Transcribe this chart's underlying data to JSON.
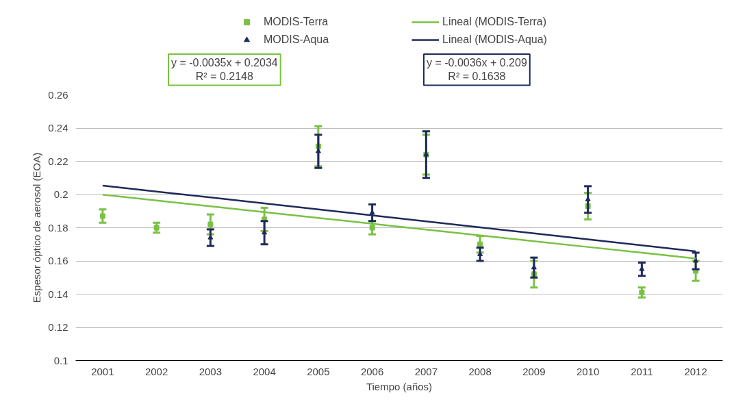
{
  "chart_data": {
    "type": "scatter",
    "xlabel": "Tiempo (años)",
    "ylabel": "Espesor óptico de aerosol (EOA)",
    "categories": [
      "2001",
      "2002",
      "2003",
      "2004",
      "2005",
      "2006",
      "2007",
      "2008",
      "2009",
      "2010",
      "2011",
      "2012"
    ],
    "ylim": [
      0.1,
      0.26
    ],
    "yticks": [
      0.1,
      0.12,
      0.14,
      0.16,
      0.18,
      0.2,
      0.22,
      0.24,
      0.26
    ],
    "grid": "y",
    "legend": "top",
    "series": [
      {
        "name": "MODIS-Terra",
        "marker": "square",
        "color": "#7ac143",
        "values": [
          0.187,
          0.18,
          0.182,
          0.185,
          0.229,
          0.18,
          0.224,
          0.17,
          0.152,
          0.193,
          0.141,
          0.154
        ],
        "errors": [
          0.004,
          0.003,
          0.006,
          0.007,
          0.012,
          0.004,
          0.012,
          0.005,
          0.008,
          0.008,
          0.003,
          0.006
        ]
      },
      {
        "name": "MODIS-Aqua",
        "marker": "triangle",
        "color": "#1f2a5a",
        "values": [
          null,
          null,
          0.174,
          0.177,
          0.226,
          0.189,
          0.224,
          0.164,
          0.156,
          0.197,
          0.155,
          0.16
        ],
        "errors": [
          null,
          null,
          0.005,
          0.007,
          0.01,
          0.005,
          0.014,
          0.004,
          0.006,
          0.008,
          0.004,
          0.005
        ]
      },
      {
        "name": "Lineal (MODIS-Terra)",
        "type": "line",
        "color": "#7ac143",
        "values": [
          0.1999,
          0.1964,
          0.1929,
          0.1894,
          0.1859,
          0.1824,
          0.1789,
          0.1754,
          0.1719,
          0.1684,
          0.1649,
          0.1614
        ]
      },
      {
        "name": "Lineal (MODIS-Aqua)",
        "type": "line",
        "color": "#1f2a5a",
        "values": [
          0.2054,
          0.2018,
          0.1982,
          0.1946,
          0.191,
          0.1874,
          0.1838,
          0.1802,
          0.1766,
          0.173,
          0.1694,
          0.1658
        ]
      }
    ],
    "annotations": [
      "y = -0.0035x + 0.2034\nR² = 0.2148",
      "y = -0.0036x + 0.209\nR² = 0.1638"
    ]
  }
}
